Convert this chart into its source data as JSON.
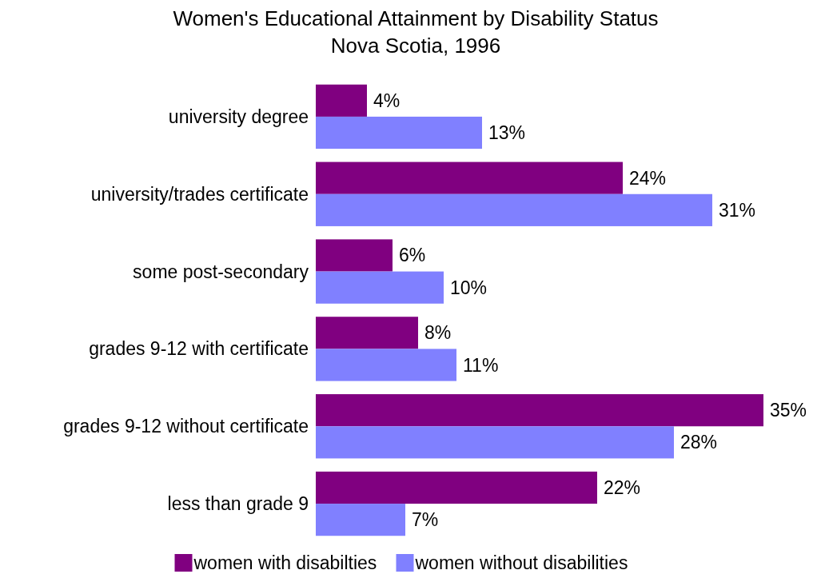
{
  "chart_data": {
    "type": "bar",
    "orientation": "horizontal",
    "title": "Women's Educational Attainment by Disability Status",
    "subtitle": "Nova Scotia, 1996",
    "categories": [
      "university degree",
      "university/trades certificate",
      "some post-secondary",
      "grades 9-12 with certificate",
      "grades 9-12 without certificate",
      "less than grade 9"
    ],
    "series": [
      {
        "name": "women with disabilties",
        "color": "#800080",
        "values": [
          4,
          24,
          6,
          8,
          35,
          22
        ],
        "value_labels": [
          "4%",
          "24%",
          "6%",
          "8%",
          "35%",
          "22%"
        ]
      },
      {
        "name": "women without disabilities",
        "color": "#8080ff",
        "values": [
          13,
          31,
          10,
          11,
          28,
          7
        ],
        "value_labels": [
          "13%",
          "31%",
          "10%",
          "11%",
          "28%",
          "7%"
        ]
      }
    ],
    "legend": "bottom"
  }
}
